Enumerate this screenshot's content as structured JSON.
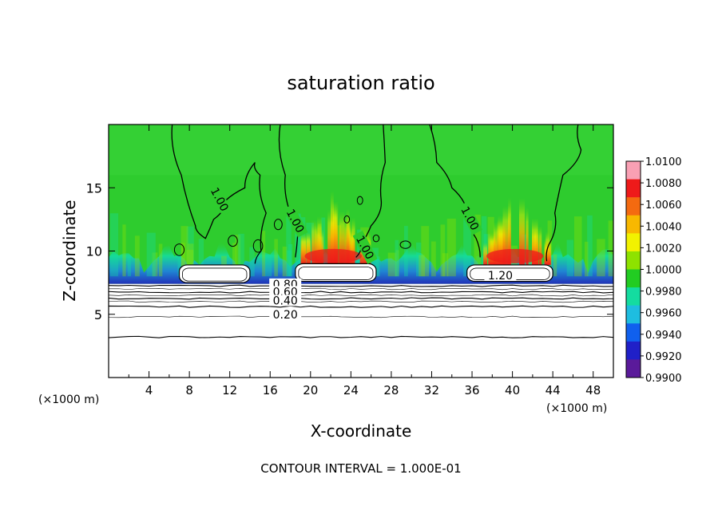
{
  "chart_data": {
    "type": "heatmap",
    "title": "saturation ratio",
    "xlabel": "X-coordinate",
    "ylabel": "Z-coordinate",
    "x_unit": "(×1000 m)",
    "x_unit_right": "(×1000 m)",
    "footer": "CONTOUR INTERVAL = 1.000E-01",
    "xlim": [
      0,
      50
    ],
    "ylim": [
      0,
      20
    ],
    "x_ticks": [
      4,
      8,
      12,
      16,
      20,
      24,
      28,
      32,
      36,
      40,
      44,
      48
    ],
    "x_tick_labels": [
      "4",
      "8",
      "12",
      "16",
      "20",
      "24",
      "28",
      "32",
      "36",
      "40",
      "44",
      "48"
    ],
    "y_ticks": [
      5,
      10,
      15
    ],
    "y_tick_labels": [
      "5",
      "10",
      "15"
    ],
    "colorbar": {
      "min": 0.99,
      "max": 1.01,
      "labels": [
        "1.0100",
        "1.0080",
        "1.0060",
        "1.0040",
        "1.0020",
        "1.0000",
        "0.9980",
        "0.9960",
        "0.9940",
        "0.9920",
        "0.9900"
      ],
      "colors": [
        "#f9a0b4",
        "#ee1a1a",
        "#f46a10",
        "#f8b800",
        "#f2f200",
        "#8ee200",
        "#22cc22",
        "#14dca0",
        "#1ebde0",
        "#1060ee",
        "#2020c8",
        "#5a1a9a"
      ]
    },
    "background_color": "#2ecc2e",
    "contour_levels_labeled": [
      {
        "label": "1.00",
        "x": 10.8,
        "z": 14.0
      },
      {
        "label": "1.00",
        "x": 18.3,
        "z": 12.3
      },
      {
        "label": "1.00",
        "x": 25.2,
        "z": 10.2
      },
      {
        "label": "1.00",
        "x": 35.6,
        "z": 12.5
      },
      {
        "label": "1.20",
        "x": 38.8,
        "z": 7.9
      },
      {
        "label": "0.80",
        "x": 17.5,
        "z": 7.2
      },
      {
        "label": "0.60",
        "x": 17.5,
        "z": 6.6
      },
      {
        "label": "0.40",
        "x": 17.5,
        "z": 5.9
      },
      {
        "label": "0.20",
        "x": 17.5,
        "z": 4.8
      }
    ],
    "lower_contours_z": [
      7.25,
      7.0,
      6.75,
      6.5,
      6.25,
      6.0,
      5.6,
      4.8,
      3.2
    ],
    "cloud_regions": [
      {
        "x_start": 7.0,
        "x_end": 14.0,
        "z_bottom": 7.5,
        "z_top": 8.9
      },
      {
        "x_start": 18.5,
        "x_end": 26.5,
        "z_bottom": 7.6,
        "z_top": 9.0
      },
      {
        "x_start": 35.5,
        "x_end": 44.0,
        "z_bottom": 7.6,
        "z_top": 8.9
      }
    ],
    "supersaturation_peaks": [
      {
        "x_start": 19.0,
        "x_end": 25.5,
        "peak": 1.0062
      },
      {
        "x_start": 37.0,
        "x_end": 43.5,
        "peak": 1.0068
      }
    ]
  }
}
